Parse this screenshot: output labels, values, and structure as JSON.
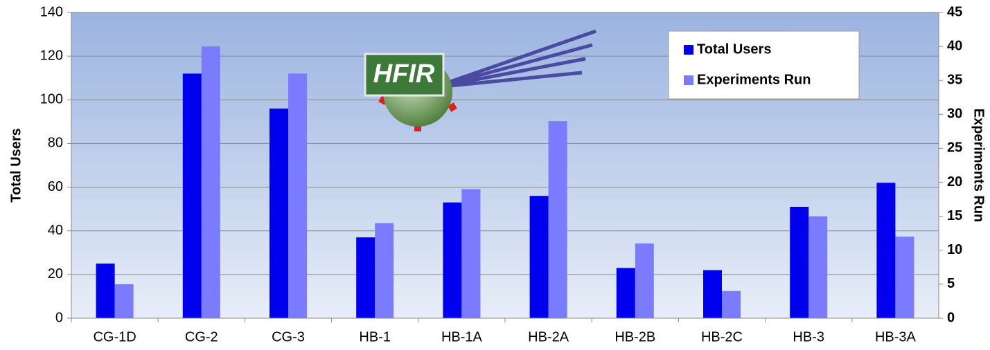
{
  "chart_data": {
    "type": "bar",
    "logo": "HFIR",
    "categories": [
      "CG-1D",
      "CG-2",
      "CG-3",
      "HB-1",
      "HB-1A",
      "HB-2A",
      "HB-2B",
      "HB-2C",
      "HB-3",
      "HB-3A"
    ],
    "series": [
      {
        "name": "Total Users",
        "color": "#0000ee",
        "values": [
          25,
          112,
          96,
          37,
          53,
          56,
          23,
          22,
          51,
          62
        ]
      },
      {
        "name": "Experiments Run",
        "color": "#7b7bff",
        "axis": "y2",
        "values": [
          5,
          40,
          36,
          14,
          19,
          29,
          11,
          4,
          15,
          12
        ]
      }
    ],
    "ylabel": "Total Users",
    "y2label": "Experiments Run",
    "ylim": [
      0,
      140
    ],
    "yticks": [
      0,
      20,
      40,
      60,
      80,
      100,
      120,
      140
    ],
    "y2lim": [
      0,
      45
    ],
    "y2ticks": [
      0,
      5,
      10,
      15,
      20,
      25,
      30,
      35,
      40,
      45
    ],
    "grid": true,
    "legend": "top-right"
  }
}
